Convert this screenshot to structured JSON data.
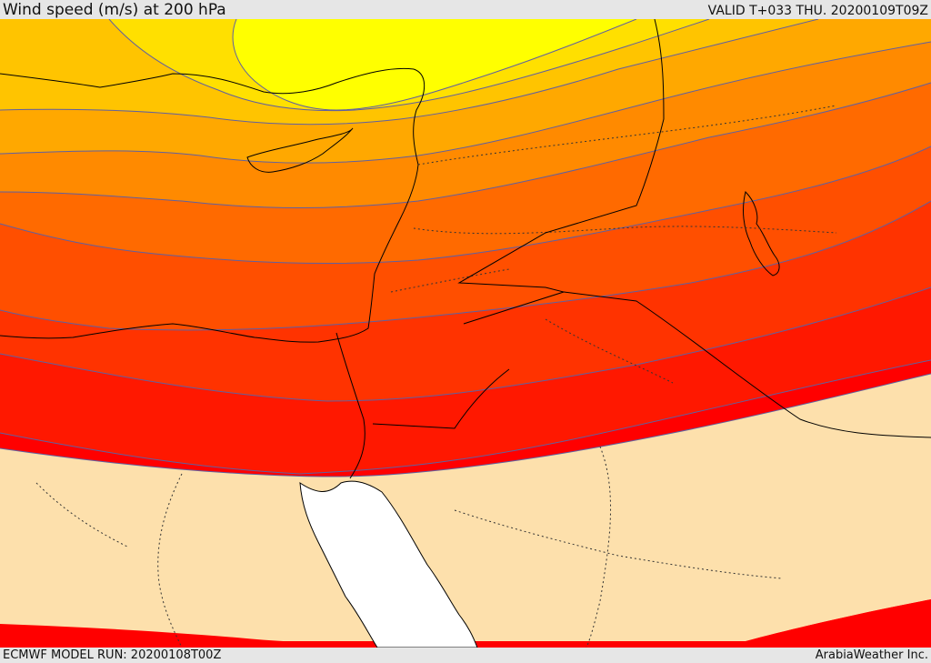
{
  "header": {
    "title": "Wind speed (m/s) at 200 hPa",
    "valid": "VALID T+033 THU. 20200109T09Z"
  },
  "footer": {
    "model_run": "ECMWF MODEL RUN: 20200108T00Z",
    "provider": "ArabiaWeather Inc."
  },
  "colors": {
    "band_1": "#ffff00",
    "band_2": "#ffe000",
    "band_3": "#ffc400",
    "band_4": "#ffa800",
    "band_5": "#ff8a00",
    "band_6": "#ff6a00",
    "band_7": "#ff4f00",
    "band_8": "#ff3300",
    "band_9": "#ff1800",
    "band_10": "#ff0000",
    "low_speed": "#fde0ac",
    "sea": "#ffffff",
    "coastline": "#000000",
    "contour": "#6060a0"
  }
}
